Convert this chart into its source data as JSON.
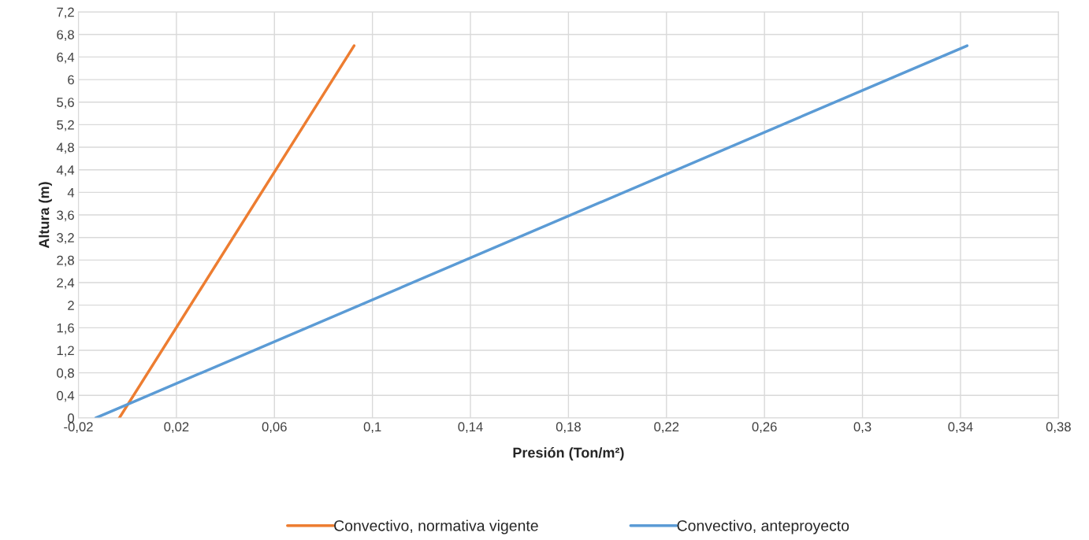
{
  "chart_data": {
    "type": "line",
    "xlabel": "Presión (Ton/m²)",
    "ylabel": "Altura (m)",
    "series": [
      {
        "name": "Convectivo, normativa vigente",
        "color": "#ed7d31",
        "x": [
          -0.0033,
          0.0925
        ],
        "values": [
          0,
          6.6
        ]
      },
      {
        "name": "Convectivo, anteproyecto",
        "color": "#5b9bd5",
        "x": [
          -0.0129,
          0.3427
        ],
        "values": [
          0,
          6.6
        ]
      }
    ],
    "xlim": [
      -0.02,
      0.38
    ],
    "xticks": [
      {
        "value": -0.02,
        "label": "-0,02"
      },
      {
        "value": 0.02,
        "label": "0,02"
      },
      {
        "value": 0.06,
        "label": "0,06"
      },
      {
        "value": 0.1,
        "label": "0,1"
      },
      {
        "value": 0.14,
        "label": "0,14"
      },
      {
        "value": 0.18,
        "label": "0,18"
      },
      {
        "value": 0.22,
        "label": "0,22"
      },
      {
        "value": 0.26,
        "label": "0,26"
      },
      {
        "value": 0.3,
        "label": "0,3"
      },
      {
        "value": 0.34,
        "label": "0,34"
      },
      {
        "value": 0.38,
        "label": "0,38"
      }
    ],
    "ylim": [
      0,
      7.2
    ],
    "yticks": [
      0,
      {
        "value": 0.4,
        "label": "0,4"
      },
      {
        "value": 0.8,
        "label": "0,8"
      },
      {
        "value": 1.2,
        "label": "1,2"
      },
      {
        "value": 1.6,
        "label": "1,6"
      },
      2,
      {
        "value": 2.4,
        "label": "2,4"
      },
      {
        "value": 2.8,
        "label": "2,8"
      },
      {
        "value": 3.2,
        "label": "3,2"
      },
      {
        "value": 3.6,
        "label": "3,6"
      },
      4,
      {
        "value": 4.4,
        "label": "4,4"
      },
      {
        "value": 4.8,
        "label": "4,8"
      },
      {
        "value": 5.2,
        "label": "5,2"
      },
      {
        "value": 5.6,
        "label": "5,6"
      },
      6,
      {
        "value": 6.4,
        "label": "6,4"
      },
      {
        "value": 6.8,
        "label": "6,8"
      },
      {
        "value": 7.2,
        "label": "7,2"
      }
    ],
    "grid": true,
    "legend": "bottom",
    "marker": "none",
    "line_style": "solid"
  }
}
